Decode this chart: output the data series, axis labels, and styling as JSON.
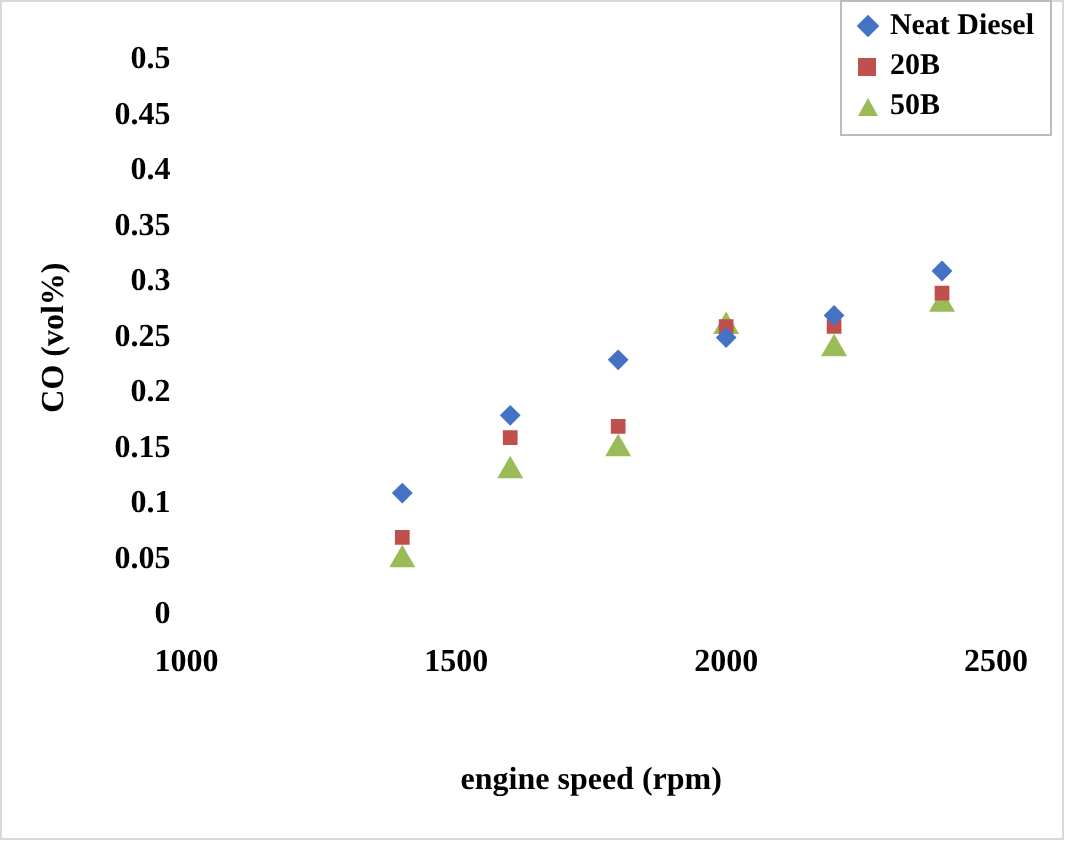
{
  "chart_data": {
    "type": "scatter",
    "xlabel": "engine speed (rpm)",
    "ylabel": "CO (vol%)",
    "x": [
      1400,
      1600,
      1800,
      2000,
      2200,
      2400
    ],
    "series": [
      {
        "name": "Neat Diesel",
        "color": "#4472c4",
        "marker": "diamond",
        "values": [
          0.11,
          0.18,
          0.23,
          0.25,
          0.27,
          0.31
        ]
      },
      {
        "name": "20B",
        "color": "#c0504d",
        "marker": "square",
        "values": [
          0.07,
          0.16,
          0.17,
          0.26,
          0.26,
          0.29
        ]
      },
      {
        "name": "50B",
        "color": "#9bbb59",
        "marker": "triangle",
        "values": [
          0.05,
          0.13,
          0.15,
          0.26,
          0.24,
          0.28
        ]
      }
    ],
    "xlim": [
      1000,
      2500
    ],
    "xticks": [
      1000,
      1500,
      2000,
      2500
    ],
    "ylim": [
      0,
      0.5
    ],
    "yticks": [
      0,
      0.05,
      0.1,
      0.15,
      0.2,
      0.25,
      0.3,
      0.35,
      0.4,
      0.45,
      0.5
    ],
    "grid": false,
    "legend": "top right"
  }
}
